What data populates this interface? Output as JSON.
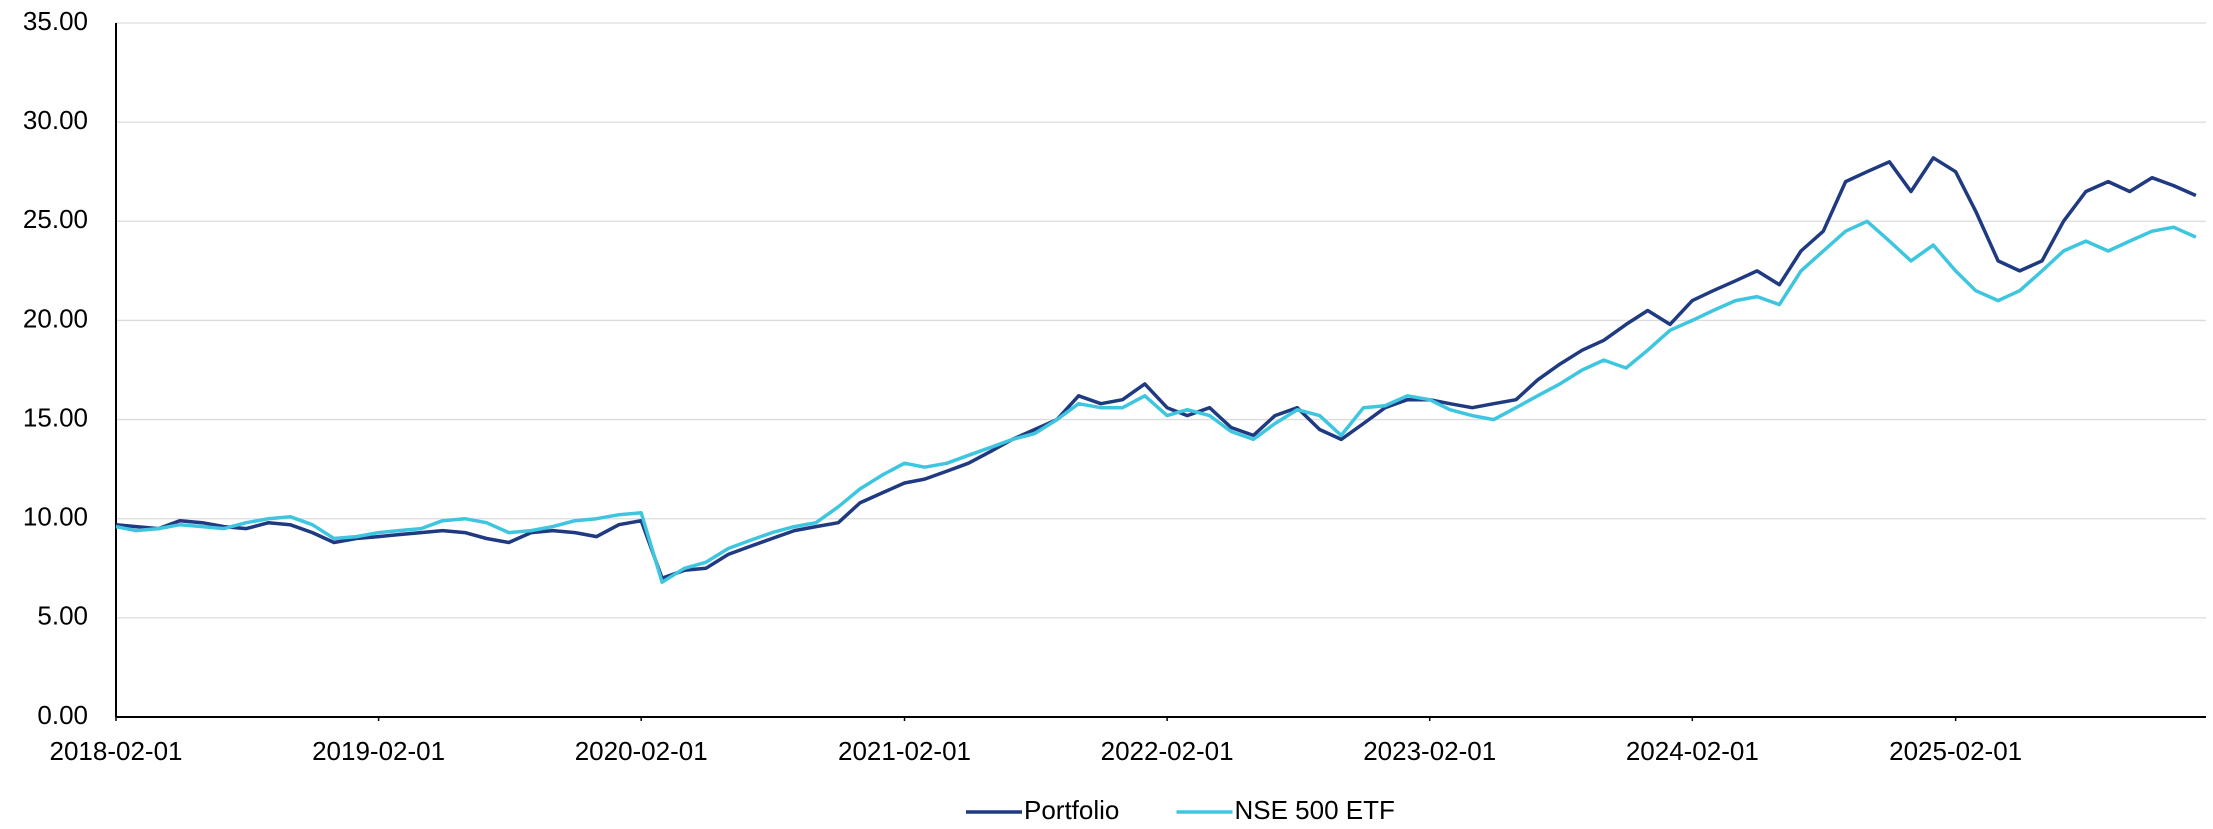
{
  "chart_data": {
    "type": "line",
    "x": [
      "2018-02-01",
      "2018-03-01",
      "2018-04-01",
      "2018-05-01",
      "2018-06-01",
      "2018-07-01",
      "2018-08-01",
      "2018-09-01",
      "2018-10-01",
      "2018-11-01",
      "2018-12-01",
      "2019-01-01",
      "2019-02-01",
      "2019-03-01",
      "2019-04-01",
      "2019-05-01",
      "2019-06-01",
      "2019-07-01",
      "2019-08-01",
      "2019-09-01",
      "2019-10-01",
      "2019-11-01",
      "2019-12-01",
      "2020-01-01",
      "2020-02-01",
      "2020-03-01",
      "2020-04-01",
      "2020-05-01",
      "2020-06-01",
      "2020-07-01",
      "2020-08-01",
      "2020-09-01",
      "2020-10-01",
      "2020-11-01",
      "2020-12-01",
      "2021-01-01",
      "2021-02-01",
      "2021-03-01",
      "2021-04-01",
      "2021-05-01",
      "2021-06-01",
      "2021-07-01",
      "2021-08-01",
      "2021-09-01",
      "2021-10-01",
      "2021-11-01",
      "2021-12-01",
      "2022-01-01",
      "2022-02-01",
      "2022-03-01",
      "2022-04-01",
      "2022-05-01",
      "2022-06-01",
      "2022-07-01",
      "2022-08-01",
      "2022-09-01",
      "2022-10-01",
      "2022-11-01",
      "2022-12-01",
      "2023-01-01",
      "2023-02-01",
      "2023-03-01",
      "2023-04-01",
      "2023-05-01",
      "2023-06-01",
      "2023-07-01",
      "2023-08-01",
      "2023-09-01",
      "2023-10-01",
      "2023-11-01",
      "2023-12-01",
      "2024-01-01",
      "2024-02-01",
      "2024-03-01",
      "2024-04-01",
      "2024-05-01",
      "2024-06-01",
      "2024-07-01",
      "2024-08-01",
      "2024-09-01",
      "2024-10-01",
      "2024-11-01",
      "2024-12-01",
      "2025-01-01",
      "2025-02-01",
      "2025-03-01",
      "2025-04-01",
      "2025-05-01",
      "2025-06-01",
      "2025-07-01",
      "2025-08-01",
      "2025-09-01",
      "2025-10-01",
      "2025-11-01",
      "2025-12-01",
      "2026-01-01"
    ],
    "series": [
      {
        "name": "Portfolio",
        "color": "#1f3a80",
        "values": [
          9.7,
          9.6,
          9.5,
          9.9,
          9.8,
          9.6,
          9.5,
          9.8,
          9.7,
          9.3,
          8.8,
          9.0,
          9.1,
          9.2,
          9.3,
          9.4,
          9.3,
          9.0,
          8.8,
          9.3,
          9.4,
          9.3,
          9.1,
          9.7,
          9.9,
          7.0,
          7.4,
          7.5,
          8.2,
          8.6,
          9.0,
          9.4,
          9.6,
          9.8,
          10.8,
          11.3,
          11.8,
          12.0,
          12.4,
          12.8,
          13.4,
          14.0,
          14.5,
          15.0,
          16.2,
          15.8,
          16.0,
          16.8,
          15.6,
          15.2,
          15.6,
          14.6,
          14.2,
          15.2,
          15.6,
          14.5,
          14.0,
          14.8,
          15.6,
          16.0,
          16.0,
          15.8,
          15.6,
          15.8,
          16.0,
          17.0,
          17.8,
          18.5,
          19.0,
          19.8,
          20.5,
          19.8,
          21.0,
          21.5,
          22.0,
          22.5,
          21.8,
          23.5,
          24.5,
          27.0,
          27.5,
          28.0,
          26.5,
          28.2,
          27.5,
          25.5,
          23.0,
          22.5,
          23.0,
          25.0,
          26.5,
          27.0,
          26.5,
          27.2,
          26.8,
          26.3
        ]
      },
      {
        "name": "NSE 500 ETF",
        "color": "#3ec6e0",
        "values": [
          9.6,
          9.4,
          9.5,
          9.7,
          9.6,
          9.5,
          9.8,
          10.0,
          10.1,
          9.7,
          9.0,
          9.1,
          9.3,
          9.4,
          9.5,
          9.9,
          10.0,
          9.8,
          9.3,
          9.4,
          9.6,
          9.9,
          10.0,
          10.2,
          10.3,
          6.8,
          7.5,
          7.8,
          8.5,
          8.9,
          9.3,
          9.6,
          9.8,
          10.6,
          11.5,
          12.2,
          12.8,
          12.6,
          12.8,
          13.2,
          13.6,
          14.0,
          14.3,
          15.0,
          15.8,
          15.6,
          15.6,
          16.2,
          15.2,
          15.5,
          15.2,
          14.4,
          14.0,
          14.8,
          15.5,
          15.2,
          14.2,
          15.6,
          15.7,
          16.2,
          16.0,
          15.5,
          15.2,
          15.0,
          15.6,
          16.2,
          16.8,
          17.5,
          18.0,
          17.6,
          18.5,
          19.5,
          20.0,
          20.5,
          21.0,
          21.2,
          20.8,
          22.5,
          23.5,
          24.5,
          25.0,
          24.0,
          23.0,
          23.8,
          22.5,
          21.5,
          21.0,
          21.5,
          22.5,
          23.5,
          24.0,
          23.5,
          24.0,
          24.5,
          24.7,
          24.2
        ]
      }
    ],
    "xlim": [
      "2018-02-01",
      "2026-01-15"
    ],
    "xticks": [
      "2018-02-01",
      "2019-02-01",
      "2020-02-01",
      "2021-02-01",
      "2022-02-01",
      "2023-02-01",
      "2024-02-01",
      "2025-02-01"
    ],
    "ylim": [
      0,
      35
    ],
    "yticks": [
      {
        "value": 0,
        "label": "0.00"
      },
      {
        "value": 5,
        "label": "5.00"
      },
      {
        "value": 10,
        "label": "10.00"
      },
      {
        "value": 15,
        "label": "15.00"
      },
      {
        "value": 20,
        "label": "20.00"
      },
      {
        "value": 25,
        "label": "25.00"
      },
      {
        "value": 30,
        "label": "30.00"
      },
      {
        "value": 35,
        "label": "35.00"
      }
    ],
    "grid": true,
    "legend": "bottom"
  }
}
